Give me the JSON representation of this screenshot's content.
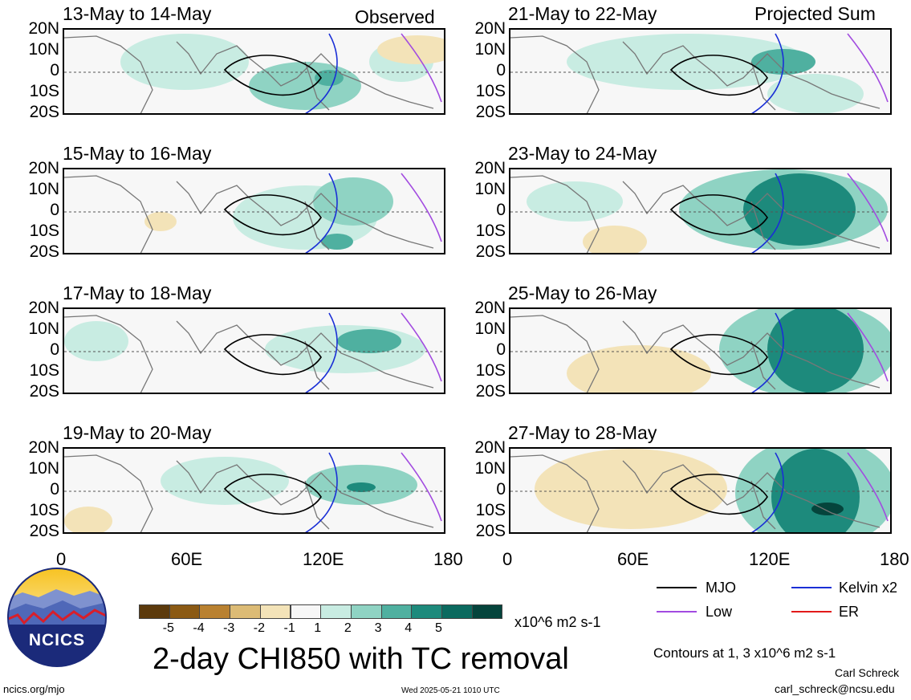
{
  "panels_left": [
    {
      "title": "13-May to 14-May",
      "tag": "Observed"
    },
    {
      "title": "15-May to 16-May",
      "tag": ""
    },
    {
      "title": "17-May to 18-May",
      "tag": ""
    },
    {
      "title": "19-May to 20-May",
      "tag": ""
    }
  ],
  "panels_right": [
    {
      "title": "21-May to 22-May",
      "tag": "Projected Sum"
    },
    {
      "title": "23-May to 24-May",
      "tag": ""
    },
    {
      "title": "25-May to 26-May",
      "tag": ""
    },
    {
      "title": "27-May to 28-May",
      "tag": ""
    }
  ],
  "lat_labels": [
    "20N",
    "10N",
    "0",
    "10S",
    "20S"
  ],
  "lon_labels": [
    "0",
    "60E",
    "120E",
    "180"
  ],
  "colorbar": {
    "ticks": [
      "-5",
      "-4",
      "-3",
      "-2",
      "-1",
      "1",
      "2",
      "3",
      "4",
      "5"
    ],
    "colors": [
      "#5c3a0c",
      "#8b5a14",
      "#b98130",
      "#dcbb75",
      "#f3e3b8",
      "#f7f7f7",
      "#c8ece2",
      "#8fd3c3",
      "#4fb0a0",
      "#1d8a7c",
      "#0b6a5f",
      "#05443c"
    ],
    "units": "x10^6 m2 s-1"
  },
  "legend": {
    "items": [
      {
        "label": "MJO",
        "color": "#000000"
      },
      {
        "label": "Kelvin x2",
        "color": "#1a2fd6"
      },
      {
        "label": "Low",
        "color": "#a24be0"
      },
      {
        "label": "ER",
        "color": "#e21a1a"
      }
    ],
    "contours_note": "Contours at 1, 3 x10^6 m2 s-1"
  },
  "main_title": "2-day CHI850 with TC removal",
  "logo_text": "NCICS",
  "footer": {
    "url": "ncics.org/mjo",
    "timestamp": "Wed 2025-05-21 1010 UTC",
    "author": "Carl Schreck",
    "email": "carl_schreck@ncsu.edu"
  }
}
